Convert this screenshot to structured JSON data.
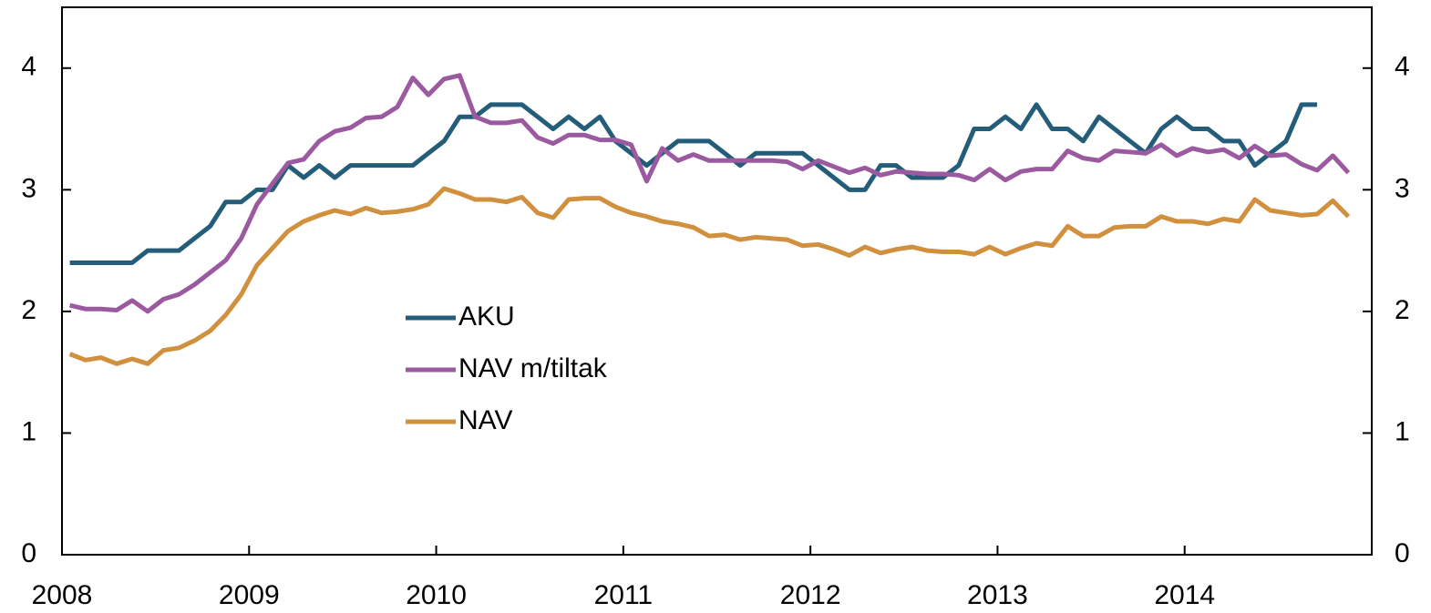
{
  "chart_data": {
    "type": "line",
    "x": [
      2008.042,
      2008.125,
      2008.208,
      2008.292,
      2008.375,
      2008.458,
      2008.542,
      2008.625,
      2008.708,
      2008.792,
      2008.875,
      2008.958,
      2009.042,
      2009.125,
      2009.208,
      2009.292,
      2009.375,
      2009.458,
      2009.542,
      2009.625,
      2009.708,
      2009.792,
      2009.875,
      2009.958,
      2010.042,
      2010.125,
      2010.208,
      2010.292,
      2010.375,
      2010.458,
      2010.542,
      2010.625,
      2010.708,
      2010.792,
      2010.875,
      2010.958,
      2011.042,
      2011.125,
      2011.208,
      2011.292,
      2011.375,
      2011.458,
      2011.542,
      2011.625,
      2011.708,
      2011.792,
      2011.875,
      2011.958,
      2012.042,
      2012.125,
      2012.208,
      2012.292,
      2012.375,
      2012.458,
      2012.542,
      2012.625,
      2012.708,
      2012.792,
      2012.875,
      2012.958,
      2013.042,
      2013.125,
      2013.208,
      2013.292,
      2013.375,
      2013.458,
      2013.542,
      2013.625,
      2013.708,
      2013.792,
      2013.875,
      2013.958,
      2014.042,
      2014.125,
      2014.208,
      2014.292,
      2014.375,
      2014.458,
      2014.542,
      2014.625,
      2014.708,
      2014.792,
      2014.875
    ],
    "series": [
      {
        "name": "AKU",
        "color": "#245d79",
        "values": [
          2.4,
          2.4,
          2.4,
          2.4,
          2.4,
          2.5,
          2.5,
          2.5,
          2.6,
          2.7,
          2.9,
          2.9,
          3.0,
          3.0,
          3.2,
          3.1,
          3.2,
          3.1,
          3.2,
          3.2,
          3.2,
          3.2,
          3.2,
          3.3,
          3.4,
          3.6,
          3.6,
          3.7,
          3.7,
          3.7,
          3.6,
          3.5,
          3.6,
          3.5,
          3.6,
          3.4,
          3.3,
          3.2,
          3.3,
          3.4,
          3.4,
          3.4,
          3.3,
          3.2,
          3.3,
          3.3,
          3.3,
          3.3,
          3.2,
          3.1,
          3.0,
          3.0,
          3.2,
          3.2,
          3.1,
          3.1,
          3.1,
          3.2,
          3.5,
          3.5,
          3.6,
          3.5,
          3.7,
          3.5,
          3.5,
          3.4,
          3.6,
          3.5,
          3.4,
          3.3,
          3.5,
          3.6,
          3.5,
          3.5,
          3.4,
          3.4,
          3.2,
          3.3,
          3.4,
          3.7,
          3.7,
          null,
          null
        ]
      },
      {
        "name": "NAV m/tiltak",
        "color": "#9b5aa0",
        "values": [
          2.05,
          2.02,
          2.02,
          2.01,
          2.09,
          2.0,
          2.1,
          2.14,
          2.22,
          2.32,
          2.42,
          2.6,
          2.88,
          3.05,
          3.22,
          3.25,
          3.4,
          3.48,
          3.51,
          3.59,
          3.6,
          3.68,
          3.92,
          3.78,
          3.91,
          3.94,
          3.6,
          3.55,
          3.55,
          3.57,
          3.43,
          3.38,
          3.45,
          3.45,
          3.41,
          3.41,
          3.37,
          3.07,
          3.34,
          3.24,
          3.29,
          3.24,
          3.24,
          3.24,
          3.24,
          3.24,
          3.23,
          3.17,
          3.24,
          3.19,
          3.14,
          3.18,
          3.12,
          3.15,
          3.14,
          3.13,
          3.13,
          3.12,
          3.08,
          3.17,
          3.08,
          3.15,
          3.17,
          3.17,
          3.32,
          3.26,
          3.24,
          3.32,
          3.31,
          3.3,
          3.37,
          3.28,
          3.34,
          3.31,
          3.33,
          3.26,
          3.36,
          3.28,
          3.29,
          3.21,
          3.16,
          3.28,
          3.14
        ]
      },
      {
        "name": "NAV",
        "color": "#d0903e",
        "values": [
          1.65,
          1.6,
          1.62,
          1.57,
          1.61,
          1.57,
          1.68,
          1.7,
          1.76,
          1.84,
          1.97,
          2.14,
          2.38,
          2.52,
          2.66,
          2.74,
          2.79,
          2.83,
          2.8,
          2.85,
          2.81,
          2.82,
          2.84,
          2.88,
          3.01,
          2.97,
          2.92,
          2.92,
          2.9,
          2.94,
          2.81,
          2.77,
          2.92,
          2.93,
          2.93,
          2.86,
          2.81,
          2.78,
          2.74,
          2.72,
          2.69,
          2.62,
          2.63,
          2.59,
          2.61,
          2.6,
          2.59,
          2.54,
          2.55,
          2.51,
          2.46,
          2.53,
          2.48,
          2.51,
          2.53,
          2.5,
          2.49,
          2.49,
          2.47,
          2.53,
          2.47,
          2.52,
          2.56,
          2.54,
          2.7,
          2.62,
          2.62,
          2.69,
          2.7,
          2.7,
          2.78,
          2.74,
          2.74,
          2.72,
          2.76,
          2.74,
          2.92,
          2.83,
          2.81,
          2.79,
          2.8,
          2.91,
          2.78
        ]
      }
    ],
    "xlim": [
      2008,
      2015
    ],
    "xticks": [
      2008,
      2009,
      2010,
      2011,
      2012,
      2013,
      2014
    ],
    "ylim": [
      0,
      4.5
    ],
    "yticks": [
      0,
      1,
      2,
      3,
      4
    ]
  }
}
